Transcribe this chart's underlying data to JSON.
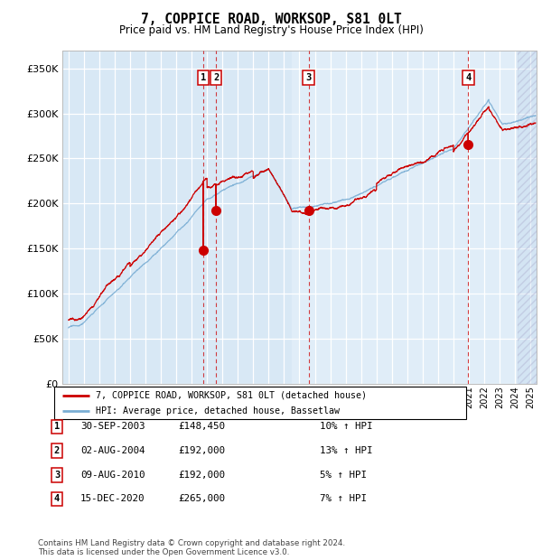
{
  "title": "7, COPPICE ROAD, WORKSOP, S81 0LT",
  "subtitle": "Price paid vs. HM Land Registry's House Price Index (HPI)",
  "ylim": [
    0,
    370000
  ],
  "yticks": [
    0,
    50000,
    100000,
    150000,
    200000,
    250000,
    300000,
    350000
  ],
  "ytick_labels": [
    "£0",
    "£50K",
    "£100K",
    "£150K",
    "£200K",
    "£250K",
    "£300K",
    "£350K"
  ],
  "xlim_start": 1994.6,
  "xlim_end": 2025.4,
  "plot_bg": "#d8e8f5",
  "grid_color": "#ffffff",
  "hpi_color": "#7aaed4",
  "price_color": "#cc0000",
  "legend_line1": "7, COPPICE ROAD, WORKSOP, S81 0LT (detached house)",
  "legend_line2": "HPI: Average price, detached house, Bassetlaw",
  "transactions": [
    {
      "id": 1,
      "date": "30-SEP-2003",
      "price": 148450,
      "pct": "10%",
      "x": 2003.75
    },
    {
      "id": 2,
      "date": "02-AUG-2004",
      "price": 192000,
      "pct": "13%",
      "x": 2004.58
    },
    {
      "id": 3,
      "date": "09-AUG-2010",
      "price": 192000,
      "pct": "5%",
      "x": 2010.6
    },
    {
      "id": 4,
      "date": "15-DEC-2020",
      "price": 265000,
      "pct": "7%",
      "x": 2020.96
    }
  ],
  "footer_line1": "Contains HM Land Registry data © Crown copyright and database right 2024.",
  "footer_line2": "This data is licensed under the Open Government Licence v3.0.",
  "hatch_start": 2024.17
}
